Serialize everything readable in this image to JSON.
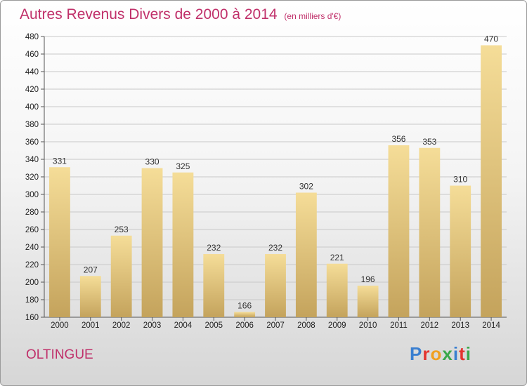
{
  "header": {
    "title": "Autres Revenus Divers de 2000 à 2014",
    "subtitle": "(en milliers d'€)"
  },
  "footer": {
    "city": "OLTINGUE",
    "logo_letters": [
      "P",
      "r",
      "o",
      "x",
      "i",
      "t",
      "i"
    ],
    "logo_colors": [
      "#3a7fd0",
      "#e3342f",
      "#f0a020",
      "#3aa84a",
      "#3a7fd0",
      "#e3342f",
      "#3aa84a"
    ]
  },
  "colors": {
    "title": "#c0306a",
    "bar_light": "#f5dd98",
    "bar_dark": "#c4a35c",
    "grid": "#c8c8c8"
  },
  "chart_data": {
    "type": "bar",
    "title": "Autres Revenus Divers de 2000 à 2014",
    "subtitle": "(en milliers d'€)",
    "categories": [
      "2000",
      "2001",
      "2002",
      "2003",
      "2004",
      "2005",
      "2006",
      "2007",
      "2008",
      "2009",
      "2010",
      "2011",
      "2012",
      "2013",
      "2014"
    ],
    "values": [
      331,
      207,
      253,
      330,
      325,
      232,
      166,
      232,
      302,
      221,
      196,
      356,
      353,
      310,
      470
    ],
    "ylim": [
      160,
      480
    ],
    "yticks": [
      160,
      180,
      200,
      220,
      240,
      260,
      280,
      300,
      320,
      340,
      360,
      380,
      400,
      420,
      440,
      460,
      480
    ],
    "grid": true,
    "xlabel": "",
    "ylabel": ""
  }
}
